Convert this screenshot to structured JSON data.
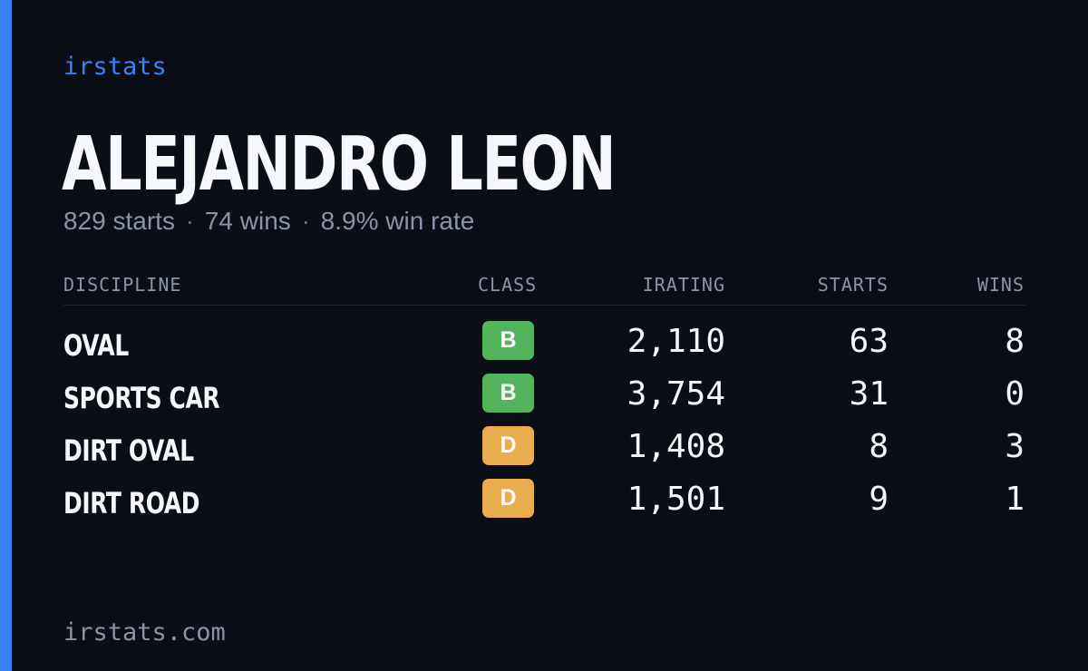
{
  "brand": "irstats",
  "driver": {
    "name": "ALEJANDRO LEON"
  },
  "summary": {
    "starts": "829 starts",
    "wins": "74 wins",
    "win_rate": "8.9% win rate",
    "separator": "·"
  },
  "table": {
    "headers": {
      "discipline": "DISCIPLINE",
      "class": "CLASS",
      "irating": "IRATING",
      "starts": "STARTS",
      "wins": "WINS"
    },
    "rows": [
      {
        "discipline": "OVAL",
        "class": "B",
        "class_color": "#53b45d",
        "irating": "2,110",
        "starts": "63",
        "wins": "8"
      },
      {
        "discipline": "SPORTS CAR",
        "class": "B",
        "class_color": "#53b45d",
        "irating": "3,754",
        "starts": "31",
        "wins": "0"
      },
      {
        "discipline": "DIRT OVAL",
        "class": "D",
        "class_color": "#e9ac4e",
        "irating": "1,408",
        "starts": "8",
        "wins": "3"
      },
      {
        "discipline": "DIRT ROAD",
        "class": "D",
        "class_color": "#e9ac4e",
        "irating": "1,501",
        "starts": "9",
        "wins": "1"
      }
    ]
  },
  "footer": "irstats.com",
  "colors": {
    "background": "#0b0e16",
    "accent": "#3b82f6",
    "muted_text": "#8a94a8",
    "primary_text": "#f6f7fb",
    "class_b": "#53b45d",
    "class_d": "#e9ac4e"
  }
}
